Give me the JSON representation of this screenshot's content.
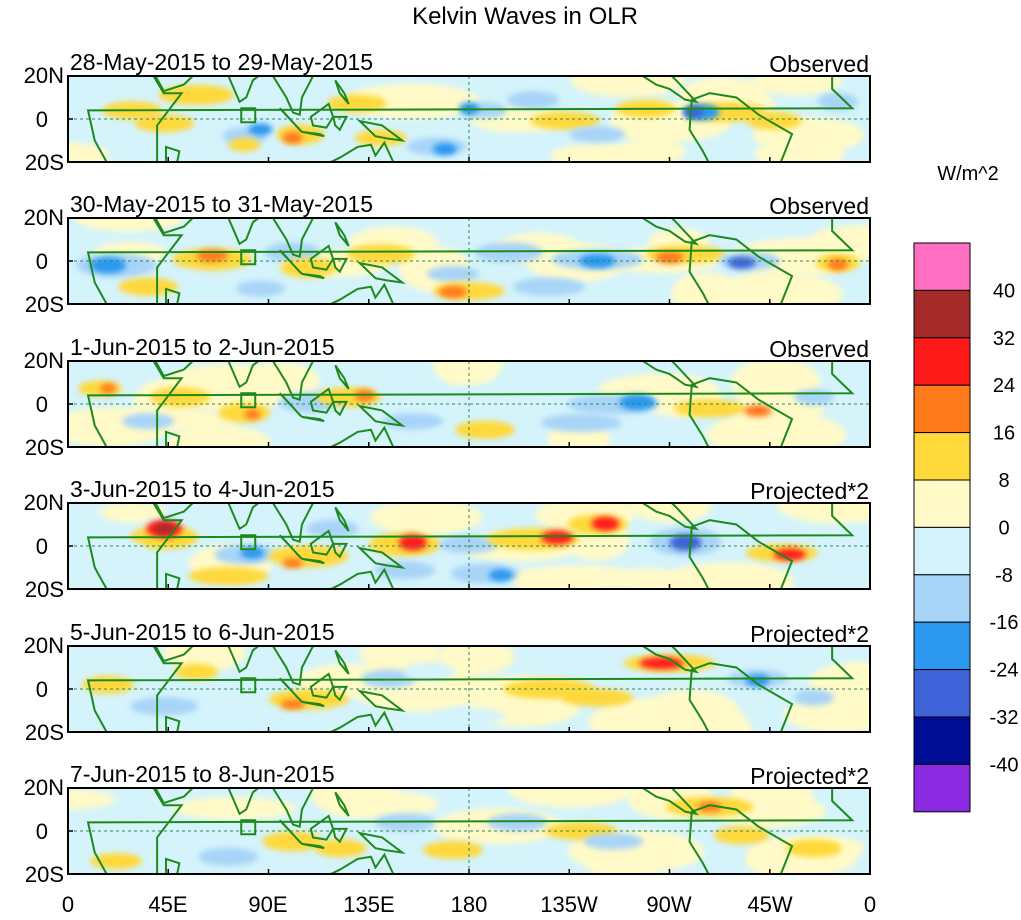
{
  "title": "Kelvin Waves in OLR",
  "panels": [
    {
      "date": "28-May-2015 to 29-May-2015",
      "label": "Observed"
    },
    {
      "date": "30-May-2015 to 31-May-2015",
      "label": "Observed"
    },
    {
      "date": "1-Jun-2015 to 2-Jun-2015",
      "label": "Observed"
    },
    {
      "date": "3-Jun-2015 to 4-Jun-2015",
      "label": "Projected*2"
    },
    {
      "date": "5-Jun-2015 to 6-Jun-2015",
      "label": "Projected*2"
    },
    {
      "date": "7-Jun-2015 to 8-Jun-2015",
      "label": "Projected*2"
    }
  ],
  "lat_ticks": [
    "20N",
    "0",
    "20S"
  ],
  "lon_ticks": [
    "0",
    "45E",
    "90E",
    "135E",
    "180",
    "135W",
    "90W",
    "45W",
    "0"
  ],
  "colorbar": {
    "unit": "W/m^2",
    "labels": [
      "40",
      "32",
      "24",
      "16",
      "8",
      "0",
      "-8",
      "-16",
      "-24",
      "-32",
      "-40"
    ],
    "colors": [
      "#ff6ec0",
      "#a52a2a",
      "#ff1a1a",
      "#ff7a1a",
      "#ffd93a",
      "#fffac8",
      "#d4f3fb",
      "#a8d4f8",
      "#2c97ef",
      "#3e63d8",
      "#000e96",
      "#8a2be2"
    ]
  },
  "colors": {
    "coast": "#1e8a1e",
    "guide": "#2e8b57",
    "frame": "#000000"
  }
}
